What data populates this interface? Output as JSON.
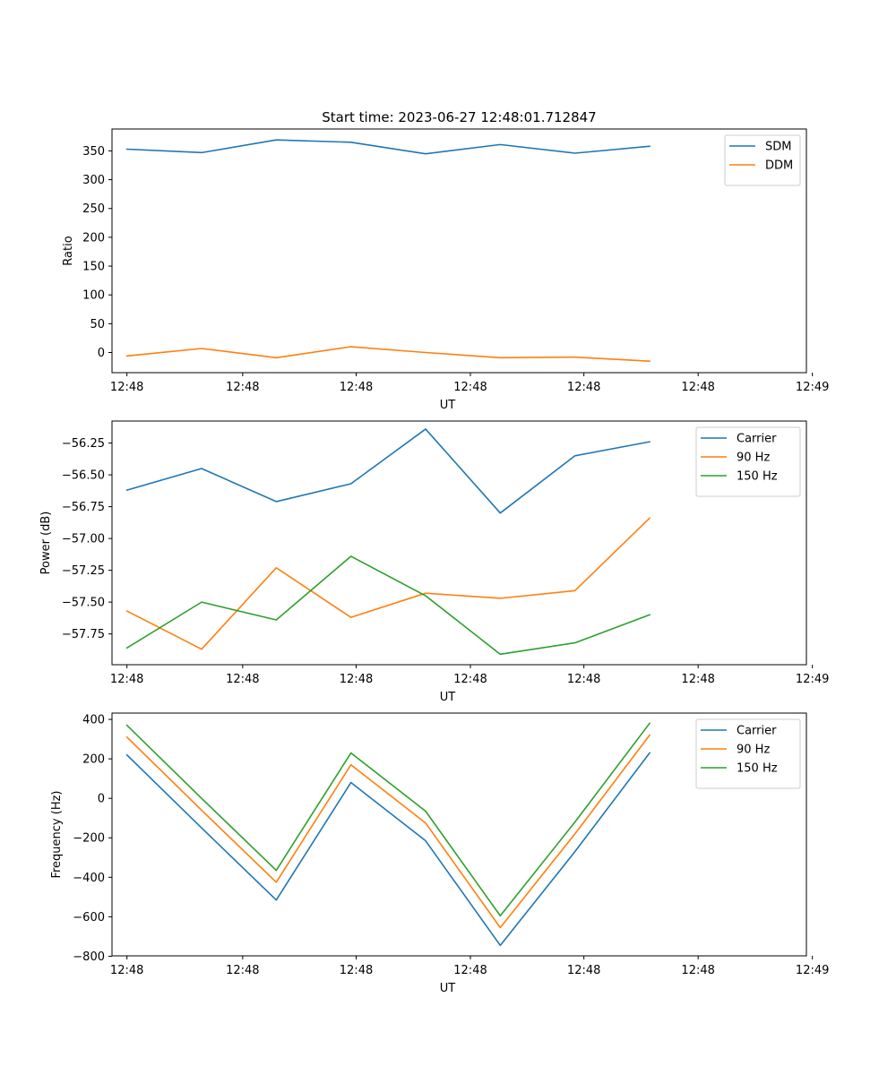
{
  "figure": {
    "title": "Start time: 2023-06-27 12:48:01.712847"
  },
  "chart_data": [
    {
      "type": "line",
      "title": "Start time: 2023-06-27 12:48:01.712847",
      "xlabel": "UT",
      "ylabel": "Ratio",
      "x": [
        1,
        2,
        3,
        4,
        5,
        6,
        7,
        8
      ],
      "xlim": [
        0.8,
        10.1
      ],
      "x_ticks": [
        {
          "pos": 1.0,
          "label": "12:48"
        },
        {
          "pos": 2.55,
          "label": "12:48"
        },
        {
          "pos": 4.07,
          "label": "12:48"
        },
        {
          "pos": 5.6,
          "label": "12:48"
        },
        {
          "pos": 7.12,
          "label": "12:48"
        },
        {
          "pos": 8.65,
          "label": "12:48"
        },
        {
          "pos": 10.18,
          "label": "12:49"
        }
      ],
      "ylim": [
        -35,
        388
      ],
      "y_ticks": [
        0,
        50,
        100,
        150,
        200,
        250,
        300,
        350
      ],
      "series": [
        {
          "name": "SDM",
          "color": "#1f77b4",
          "values": [
            353,
            347,
            369,
            365,
            345,
            361,
            346,
            358
          ]
        },
        {
          "name": "DDM",
          "color": "#ff7f0e",
          "values": [
            -6,
            7,
            -9,
            10,
            0,
            -9,
            -8,
            -15
          ]
        }
      ],
      "legend": "upper right",
      "grid": false
    },
    {
      "type": "line",
      "xlabel": "UT",
      "ylabel": "Power (dB)",
      "x": [
        1,
        2,
        3,
        4,
        5,
        6,
        7,
        8
      ],
      "xlim": [
        0.8,
        10.1
      ],
      "x_ticks": [
        {
          "pos": 1.0,
          "label": "12:48"
        },
        {
          "pos": 2.55,
          "label": "12:48"
        },
        {
          "pos": 4.07,
          "label": "12:48"
        },
        {
          "pos": 5.6,
          "label": "12:48"
        },
        {
          "pos": 7.12,
          "label": "12:48"
        },
        {
          "pos": 8.65,
          "label": "12:48"
        },
        {
          "pos": 10.18,
          "label": "12:49"
        }
      ],
      "ylim": [
        -57.992,
        -56.077
      ],
      "y_ticks": [
        {
          "value": -57.75,
          "label": "−57.75"
        },
        {
          "value": -57.5,
          "label": "−57.50"
        },
        {
          "value": -57.25,
          "label": "−57.25"
        },
        {
          "value": -57.0,
          "label": "−57.00"
        },
        {
          "value": -56.75,
          "label": "−56.75"
        },
        {
          "value": -56.5,
          "label": "−56.50"
        },
        {
          "value": -56.25,
          "label": "−56.25"
        }
      ],
      "series": [
        {
          "name": "Carrier",
          "color": "#1f77b4",
          "values": [
            -56.62,
            -56.45,
            -56.71,
            -56.57,
            -56.14,
            -56.8,
            -56.35,
            -56.24
          ]
        },
        {
          "name": "90 Hz",
          "color": "#ff7f0e",
          "values": [
            -57.57,
            -57.87,
            -57.23,
            -57.62,
            -57.43,
            -57.47,
            -57.41,
            -56.84
          ]
        },
        {
          "name": "150 Hz",
          "color": "#2ca02c",
          "values": [
            -57.86,
            -57.5,
            -57.64,
            -57.14,
            -57.45,
            -57.91,
            -57.82,
            -57.6
          ]
        }
      ],
      "legend": "upper right",
      "grid": false
    },
    {
      "type": "line",
      "xlabel": "UT",
      "ylabel": "Frequency (Hz)",
      "x": [
        1,
        2,
        3,
        4,
        5,
        6,
        7,
        8
      ],
      "xlim": [
        0.8,
        10.1
      ],
      "x_ticks": [
        {
          "pos": 1.0,
          "label": "12:48"
        },
        {
          "pos": 2.55,
          "label": "12:48"
        },
        {
          "pos": 4.07,
          "label": "12:48"
        },
        {
          "pos": 5.6,
          "label": "12:48"
        },
        {
          "pos": 7.12,
          "label": "12:48"
        },
        {
          "pos": 8.65,
          "label": "12:48"
        },
        {
          "pos": 10.18,
          "label": "12:49"
        }
      ],
      "ylim": [
        -798,
        432
      ],
      "y_ticks": [
        {
          "value": -800,
          "label": "−800"
        },
        {
          "value": -600,
          "label": "−600"
        },
        {
          "value": -400,
          "label": "−400"
        },
        {
          "value": -200,
          "label": "−200"
        },
        {
          "value": 0,
          "label": "0"
        },
        {
          "value": 200,
          "label": "200"
        },
        {
          "value": 400,
          "label": "400"
        }
      ],
      "series": [
        {
          "name": "Carrier",
          "color": "#1f77b4",
          "values": [
            220,
            -150,
            -515,
            80,
            -215,
            -745,
            -270,
            230
          ]
        },
        {
          "name": "90 Hz",
          "color": "#ff7f0e",
          "values": [
            310,
            -60,
            -425,
            170,
            -125,
            -655,
            -180,
            320
          ]
        },
        {
          "name": "150 Hz",
          "color": "#2ca02c",
          "values": [
            370,
            0,
            -365,
            230,
            -65,
            -595,
            -120,
            380
          ]
        }
      ],
      "legend": "upper right",
      "grid": false
    }
  ]
}
